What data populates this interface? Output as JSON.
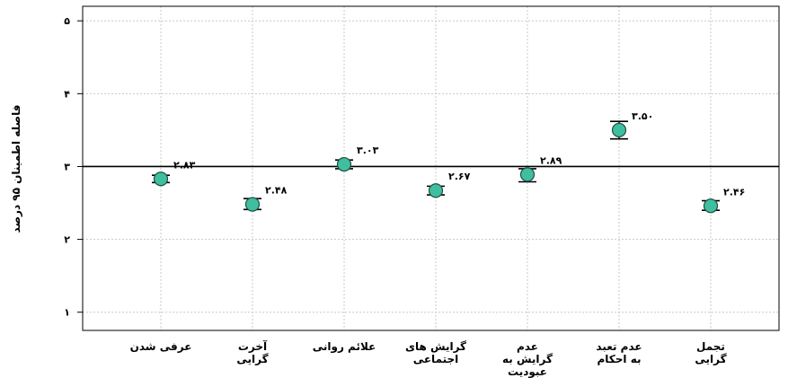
{
  "chart_data": {
    "type": "scatter",
    "ylabel": "فاصله اطمینان ۹۵ درصد",
    "ylim": [
      0.75,
      5.2
    ],
    "yticks": [
      1,
      2,
      3,
      4,
      5
    ],
    "ytick_labels": [
      "۱",
      "۲",
      "۳",
      "۴",
      "۵"
    ],
    "reference_line": 3,
    "grid": true,
    "categories": [
      [
        "عرفی شدن"
      ],
      [
        "آخرت",
        "گرایی"
      ],
      [
        "علائم روانی"
      ],
      [
        "گرایش های",
        "اجتماعی"
      ],
      [
        "عدم",
        "گرایش به",
        "عبودیت"
      ],
      [
        "عدم تعبد",
        "به احکام"
      ],
      [
        "تجمل",
        "گرایی"
      ]
    ],
    "values": [
      2.83,
      2.48,
      3.03,
      2.67,
      2.89,
      3.5,
      2.46
    ],
    "value_labels": [
      "۲.۸۳",
      "۲.۴۸",
      "۳.۰۳",
      "۲.۶۷",
      "۲.۸۹",
      "۳.۵۰",
      "۲.۴۶"
    ],
    "ci_low": [
      2.78,
      2.41,
      2.97,
      2.61,
      2.79,
      3.38,
      2.4
    ],
    "ci_high": [
      2.88,
      2.56,
      3.09,
      2.73,
      2.97,
      3.62,
      2.53
    ],
    "colors": {
      "point": "#3fbf9f",
      "point_stroke": "#1f4f42",
      "grid": "#c8c8c8",
      "axis": "#000000"
    }
  }
}
